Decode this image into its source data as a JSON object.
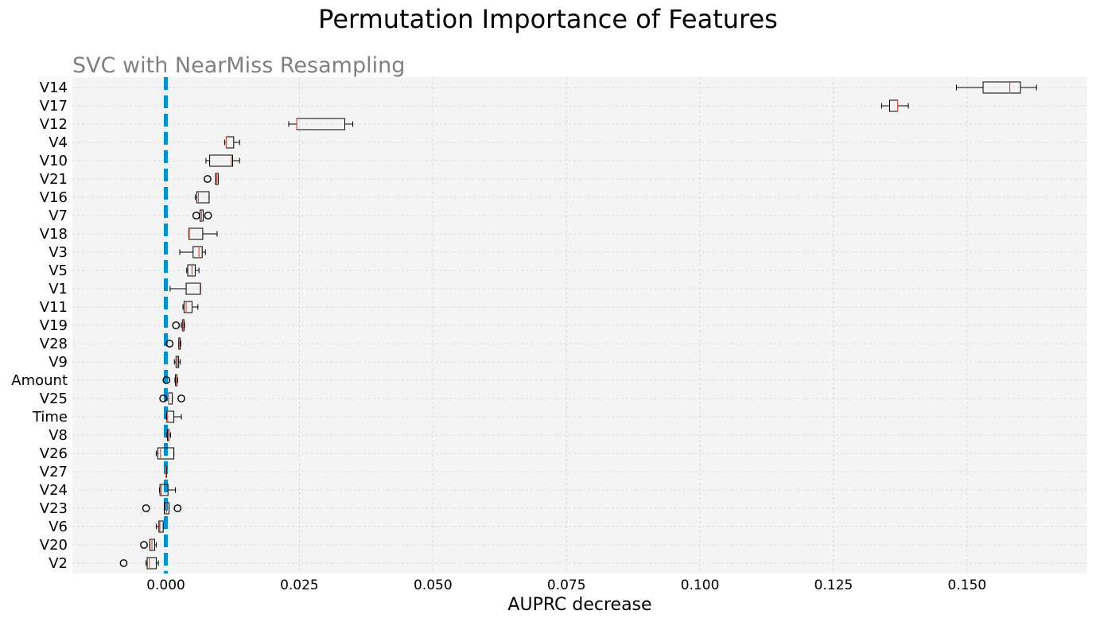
{
  "chart_data": {
    "type": "box",
    "title": "Permutation Importance of Features",
    "subtitle": "SVC with NearMiss Resampling",
    "xlabel": "AUPRC decrease",
    "ylabel": "",
    "xlim": [
      -0.0175,
      0.1725
    ],
    "xticks": [
      0.0,
      0.025,
      0.05,
      0.075,
      0.1,
      0.125,
      0.15
    ],
    "xtick_labels": [
      "0.000",
      "0.025",
      "0.050",
      "0.075",
      "0.100",
      "0.125",
      "0.150"
    ],
    "grid": true,
    "reference_line": {
      "x": 0.0,
      "style": "dashed",
      "color": "#0091d5"
    },
    "colors": {
      "plot_background": "#f4f4f4",
      "median": "#e0533c",
      "box_edge": "#000000",
      "title": "#000000",
      "subtitle": "#808080"
    },
    "features": [
      {
        "name": "V14",
        "wlo": 0.148,
        "q1": 0.153,
        "med": 0.158,
        "q3": 0.16,
        "whi": 0.163,
        "fliers": []
      },
      {
        "name": "V17",
        "wlo": 0.134,
        "q1": 0.1355,
        "med": 0.137,
        "q3": 0.137,
        "whi": 0.139,
        "fliers": []
      },
      {
        "name": "V12",
        "wlo": 0.023,
        "q1": 0.0245,
        "med": 0.0245,
        "q3": 0.0335,
        "whi": 0.035,
        "fliers": []
      },
      {
        "name": "V4",
        "wlo": 0.011,
        "q1": 0.0113,
        "med": 0.0113,
        "q3": 0.0127,
        "whi": 0.0138,
        "fliers": []
      },
      {
        "name": "V10",
        "wlo": 0.0075,
        "q1": 0.0082,
        "med": 0.0123,
        "q3": 0.0125,
        "whi": 0.0138,
        "fliers": []
      },
      {
        "name": "V21",
        "wlo": 0.0093,
        "q1": 0.0093,
        "med": 0.0095,
        "q3": 0.0098,
        "whi": 0.0098,
        "fliers": [
          0.0078
        ]
      },
      {
        "name": "V16",
        "wlo": 0.0055,
        "q1": 0.0058,
        "med": 0.0061,
        "q3": 0.0081,
        "whi": 0.0081,
        "fliers": []
      },
      {
        "name": "V7",
        "wlo": 0.0064,
        "q1": 0.0064,
        "med": 0.0067,
        "q3": 0.007,
        "whi": 0.007,
        "fliers": [
          0.0057,
          0.0079
        ]
      },
      {
        "name": "V18",
        "wlo": 0.0043,
        "q1": 0.0043,
        "med": 0.0044,
        "q3": 0.0069,
        "whi": 0.0096,
        "fliers": []
      },
      {
        "name": "V3",
        "wlo": 0.0026,
        "q1": 0.0051,
        "med": 0.0062,
        "q3": 0.0068,
        "whi": 0.0074,
        "fliers": []
      },
      {
        "name": "V5",
        "wlo": 0.0039,
        "q1": 0.0041,
        "med": 0.0049,
        "q3": 0.0055,
        "whi": 0.0062,
        "fliers": []
      },
      {
        "name": "V1",
        "wlo": 0.0008,
        "q1": 0.0038,
        "med": 0.0064,
        "q3": 0.0065,
        "whi": 0.0065,
        "fliers": []
      },
      {
        "name": "V11",
        "wlo": 0.0032,
        "q1": 0.0034,
        "med": 0.0038,
        "q3": 0.0049,
        "whi": 0.006,
        "fliers": []
      },
      {
        "name": "V19",
        "wlo": 0.0029,
        "q1": 0.0031,
        "med": 0.0032,
        "q3": 0.0034,
        "whi": 0.0035,
        "fliers": [
          0.0019
        ]
      },
      {
        "name": "V28",
        "wlo": 0.0024,
        "q1": 0.0024,
        "med": 0.0025,
        "q3": 0.0027,
        "whi": 0.0028,
        "fliers": [
          0.0007
        ]
      },
      {
        "name": "V9",
        "wlo": 0.0016,
        "q1": 0.0019,
        "med": 0.0022,
        "q3": 0.0024,
        "whi": 0.0027,
        "fliers": []
      },
      {
        "name": "Amount",
        "wlo": 0.0017,
        "q1": 0.0018,
        "med": 0.002,
        "q3": 0.0021,
        "whi": 0.0022,
        "fliers": [
          0.0001
        ]
      },
      {
        "name": "V25",
        "wlo": 0.0001,
        "q1": 0.0005,
        "med": 0.0005,
        "q3": 0.0012,
        "whi": 0.0012,
        "fliers": [
          -0.0005,
          0.0029
        ]
      },
      {
        "name": "Time",
        "wlo": 0.0001,
        "q1": 0.0002,
        "med": 0.0003,
        "q3": 0.0015,
        "whi": 0.0029,
        "fliers": []
      },
      {
        "name": "V8",
        "wlo": 0.0002,
        "q1": 0.0003,
        "med": 0.0005,
        "q3": 0.0006,
        "whi": 0.0009,
        "fliers": []
      },
      {
        "name": "V26",
        "wlo": -0.0018,
        "q1": -0.0015,
        "med": -0.001,
        "q3": 0.0015,
        "whi": 0.0015,
        "fliers": []
      },
      {
        "name": "V27",
        "wlo": 0.0,
        "q1": 0.0,
        "med": 0.0,
        "q3": 0.0,
        "whi": 0.0,
        "fliers": []
      },
      {
        "name": "V24",
        "wlo": -0.0012,
        "q1": -0.0011,
        "med": -0.0008,
        "q3": 0.0004,
        "whi": 0.0018,
        "fliers": []
      },
      {
        "name": "V23",
        "wlo": -0.0003,
        "q1": -0.0003,
        "med": 0.0001,
        "q3": 0.0006,
        "whi": 0.0006,
        "fliers": [
          -0.0037,
          0.0022
        ]
      },
      {
        "name": "V6",
        "wlo": -0.0018,
        "q1": -0.0013,
        "med": -0.0011,
        "q3": -0.0005,
        "whi": -0.0005,
        "fliers": []
      },
      {
        "name": "V20",
        "wlo": -0.003,
        "q1": -0.003,
        "med": -0.0026,
        "q3": -0.0021,
        "whi": -0.0018,
        "fliers": [
          -0.0041
        ]
      },
      {
        "name": "V2",
        "wlo": -0.0037,
        "q1": -0.0035,
        "med": -0.0031,
        "q3": -0.0018,
        "whi": -0.0014,
        "fliers": [
          -0.0079
        ]
      }
    ]
  }
}
